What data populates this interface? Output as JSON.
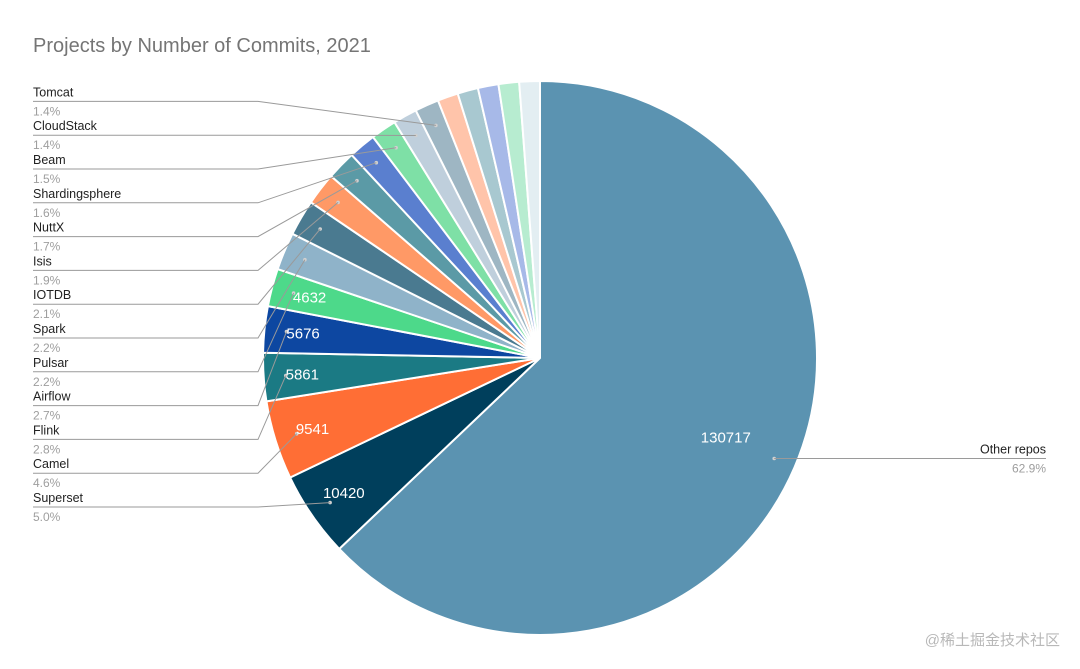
{
  "chart_data": {
    "type": "pie",
    "title": "Projects by Number of Commits, 2021",
    "slices": [
      {
        "label": "Other repos",
        "value": 130717,
        "percent": "62.9%",
        "color": "#5b93b1",
        "show_value": true
      },
      {
        "label": "Superset",
        "value": 10420,
        "percent": "5.0%",
        "color": "#003f5c",
        "show_value": true
      },
      {
        "label": "Camel",
        "value": 9541,
        "percent": "4.6%",
        "color": "#ff6e35",
        "show_value": true
      },
      {
        "label": "Flink",
        "value": 5861,
        "percent": "2.8%",
        "color": "#1b7a84",
        "show_value": true
      },
      {
        "label": "Airflow",
        "value": 5676,
        "percent": "2.7%",
        "color": "#0d47a1",
        "show_value": true
      },
      {
        "label": "Pulsar",
        "value": 4632,
        "percent": "2.2%",
        "color": "#4dd98a",
        "show_value": true
      },
      {
        "label": "Spark",
        "percent": "2.2%",
        "color": "#8fb3c9",
        "show_value": false
      },
      {
        "label": "IOTDB",
        "percent": "2.1%",
        "color": "#4a7a90",
        "show_value": false
      },
      {
        "label": "Isis",
        "percent": "1.9%",
        "color": "#ff9966",
        "show_value": false
      },
      {
        "label": "NuttX",
        "percent": "1.7%",
        "color": "#5b9aa6",
        "show_value": false
      },
      {
        "label": "Shardingsphere",
        "percent": "1.6%",
        "color": "#5a7fcf",
        "show_value": false
      },
      {
        "label": "Beam",
        "percent": "1.5%",
        "color": "#7ee0a6",
        "show_value": false
      },
      {
        "label": "CloudStack",
        "percent": "1.4%",
        "color": "#bfcfdc",
        "show_value": false
      },
      {
        "label": "Tomcat",
        "percent": "1.4%",
        "color": "#9eb6c3",
        "show_value": false
      },
      {
        "label": "",
        "percent": "",
        "color": "#ffc4aa",
        "show_value": false
      },
      {
        "label": "",
        "percent": "",
        "color": "#a8c8d0",
        "show_value": false
      },
      {
        "label": "",
        "percent": "",
        "color": "#a7b9e8",
        "show_value": false
      },
      {
        "label": "",
        "percent": "",
        "color": "#b7ecd0",
        "show_value": false
      },
      {
        "label": "",
        "percent": "",
        "color": "#e3eef2",
        "show_value": false
      }
    ],
    "legend_placement": "left-side callouts"
  },
  "watermark": "@稀土掘金技术社区"
}
